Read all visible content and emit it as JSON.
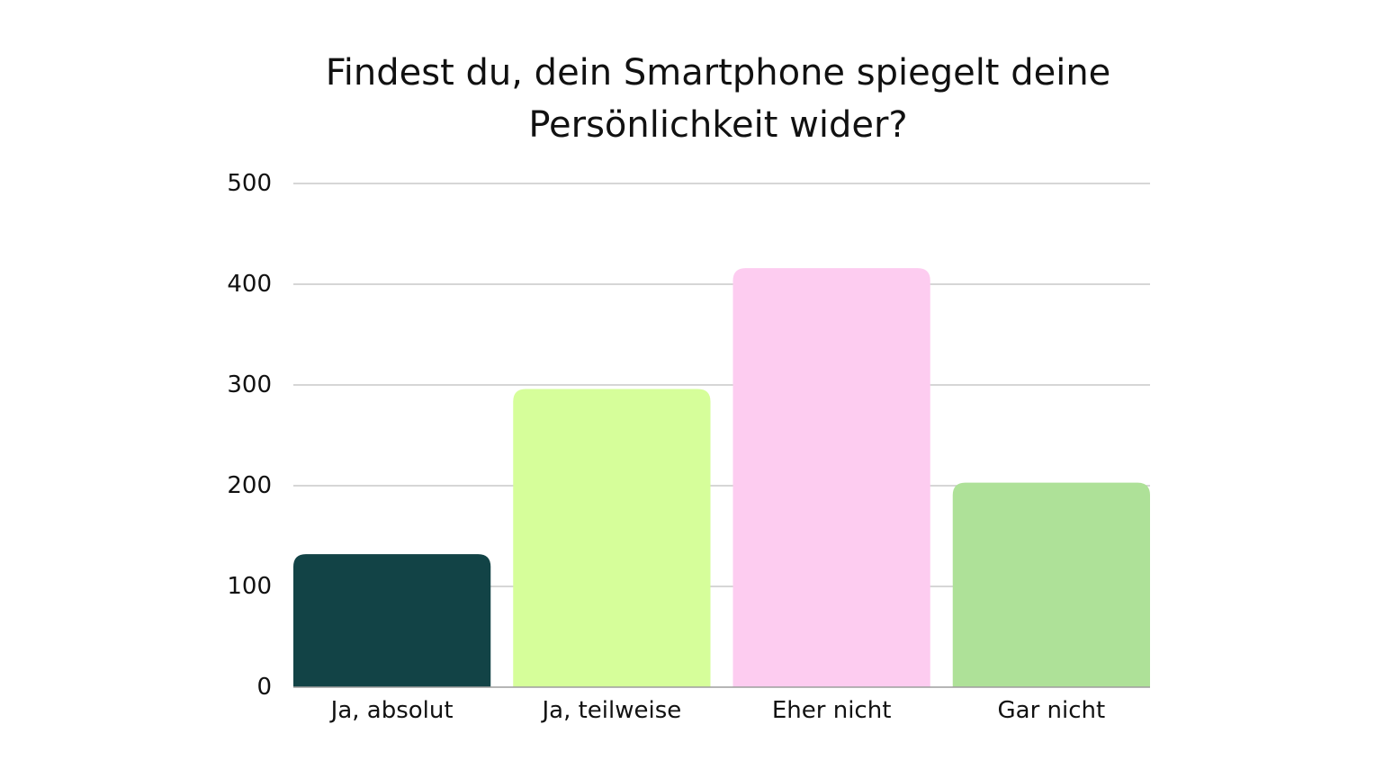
{
  "chart_data": {
    "type": "bar",
    "title_lines": [
      "Findest du, dein Smartphone spiegelt deine",
      "Persönlichkeit wider?"
    ],
    "categories": [
      "Ja, absolut",
      "Ja, teilweise",
      "Eher nicht",
      "Gar nicht"
    ],
    "values": [
      132,
      296,
      416,
      203
    ],
    "colors": [
      "#124346",
      "#d6fe9a",
      "#fdccf0",
      "#aee198"
    ],
    "ylim": [
      0,
      500
    ],
    "yticks": [
      0,
      100,
      200,
      300,
      400,
      500
    ],
    "xlabel": "",
    "ylabel": "",
    "grid": true,
    "legend": "none"
  }
}
